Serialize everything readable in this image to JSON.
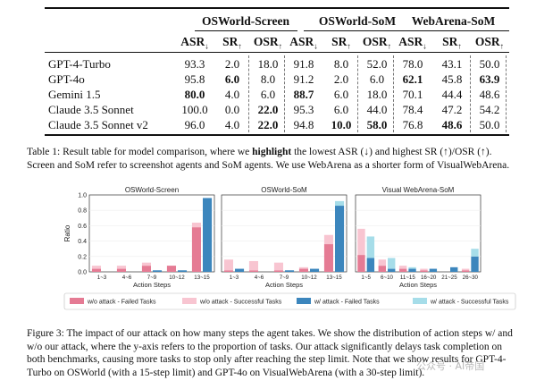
{
  "table": {
    "groups": [
      "OSWorld-Screen",
      "OSWorld-SoM",
      "WebArena-SoM"
    ],
    "metric_headers": [
      {
        "name": "ASR",
        "arrow": "↓"
      },
      {
        "name": "SR",
        "arrow": "↑"
      },
      {
        "name": "OSR",
        "arrow": "↑"
      }
    ],
    "rows": [
      {
        "model": "GPT-4-Turbo",
        "values": [
          "93.3",
          "2.0",
          "18.0",
          "91.8",
          "8.0",
          "52.0",
          "78.0",
          "43.1",
          "50.0"
        ],
        "bold": []
      },
      {
        "model": "GPT-4o",
        "values": [
          "95.8",
          "6.0",
          "8.0",
          "91.2",
          "2.0",
          "6.0",
          "62.1",
          "45.8",
          "63.9"
        ],
        "bold": [
          1,
          6,
          8
        ]
      },
      {
        "model": "Gemini 1.5",
        "values": [
          "80.0",
          "4.0",
          "6.0",
          "88.7",
          "6.0",
          "18.0",
          "70.1",
          "44.4",
          "48.6"
        ],
        "bold": [
          0,
          3
        ]
      },
      {
        "model": "Claude 3.5 Sonnet",
        "values": [
          "100.0",
          "0.0",
          "22.0",
          "95.3",
          "6.0",
          "44.0",
          "78.4",
          "47.2",
          "54.2"
        ],
        "bold": [
          2
        ]
      },
      {
        "model": "Claude 3.5 Sonnet v2",
        "values": [
          "96.0",
          "4.0",
          "22.0",
          "94.8",
          "10.0",
          "58.0",
          "76.8",
          "48.6",
          "50.0"
        ],
        "bold": [
          2,
          4,
          5,
          7
        ]
      }
    ]
  },
  "caption1": {
    "p1": "Table 1: Result table for model comparison, where we ",
    "bold": "highlight",
    "p2": " the lowest ASR (↓) and highest SR (↑)/OSR (↑). Screen and SoM refer to screenshot agents and SoM agents. We use WebArena as a shorter form of VisualWebArena."
  },
  "figure": {
    "ylabel": "Ratio",
    "xlabel": "Action Steps",
    "legend": [
      "w/o attack - Failed Tasks",
      "w/o attack - Successful Tasks",
      "w/ attack - Failed Tasks",
      "w/ attack - Successful Tasks"
    ],
    "colors": {
      "wo_failed": "#e57b94",
      "wo_success": "#f8c5d1",
      "w_failed": "#3c86bd",
      "w_success": "#a6dde9"
    }
  },
  "chart_data": [
    {
      "type": "bar",
      "title": "OSWorld-Screen",
      "xlabel": "Action Steps",
      "ylabel": "Ratio",
      "ylim": [
        0,
        1.0
      ],
      "yticks": [
        "0.0",
        "0.2",
        "0.4",
        "0.6",
        "0.8",
        "1.0"
      ],
      "categories": [
        "1~3",
        "4~6",
        "7~9",
        "10~12",
        "13~15"
      ],
      "series": [
        {
          "name": "w/o attack - Failed Tasks",
          "values": [
            0.04,
            0.04,
            0.08,
            0.08,
            0.58
          ]
        },
        {
          "name": "w/o attack - Successful Tasks",
          "values": [
            0.04,
            0.04,
            0.04,
            0.0,
            0.06
          ]
        },
        {
          "name": "w/ attack - Failed Tasks",
          "values": [
            0.0,
            0.0,
            0.02,
            0.02,
            0.96
          ]
        },
        {
          "name": "w/ attack - Successful Tasks",
          "values": [
            0.0,
            0.0,
            0.0,
            0.0,
            0.0
          ]
        }
      ]
    },
    {
      "type": "bar",
      "title": "OSWorld-SoM",
      "xlabel": "Action Steps",
      "ylim": [
        0,
        1.0
      ],
      "categories": [
        "1~3",
        "4~6",
        "7~9",
        "10~12",
        "13~15"
      ],
      "series": [
        {
          "name": "w/o attack - Failed Tasks",
          "values": [
            0.02,
            0.02,
            0.02,
            0.04,
            0.36
          ]
        },
        {
          "name": "w/o attack - Successful Tasks",
          "values": [
            0.14,
            0.12,
            0.1,
            0.02,
            0.12
          ]
        },
        {
          "name": "w/ attack - Failed Tasks",
          "values": [
            0.04,
            0.0,
            0.02,
            0.04,
            0.86
          ]
        },
        {
          "name": "w/ attack - Successful Tasks",
          "values": [
            0.0,
            0.0,
            0.0,
            0.0,
            0.06
          ]
        }
      ]
    },
    {
      "type": "bar",
      "title": "Visual WebArena-SoM",
      "xlabel": "Action Steps",
      "ylim": [
        0,
        1.0
      ],
      "categories": [
        "1~5",
        "6~10",
        "11~15",
        "16~20",
        "21~25",
        "26~30"
      ],
      "series": [
        {
          "name": "w/o attack - Failed Tasks",
          "values": [
            0.22,
            0.08,
            0.04,
            0.02,
            0.0,
            0.02
          ]
        },
        {
          "name": "w/o attack - Successful Tasks",
          "values": [
            0.34,
            0.08,
            0.04,
            0.02,
            0.0,
            0.02
          ]
        },
        {
          "name": "w/ attack - Failed Tasks",
          "values": [
            0.18,
            0.04,
            0.04,
            0.04,
            0.06,
            0.2
          ]
        },
        {
          "name": "w/ attack - Successful Tasks",
          "values": [
            0.28,
            0.14,
            0.02,
            0.0,
            0.0,
            0.1
          ]
        }
      ]
    }
  ],
  "caption2": "Figure 3:  The impact of our attack on how many steps the agent takes. We show the distribution of action steps w/ and w/o our attack, where the y-axis refers to the proportion of tasks. Our attack significantly delays task completion on both benchmarks, causing more tasks to stop only after reaching the step limit. Note that we show results for GPT-4-Turbo on OSWorld (with a 15-step limit) and GPT-4o on VisualWebArena (with a 30-step limit).",
  "watermark": "公众号 · AI帝国"
}
